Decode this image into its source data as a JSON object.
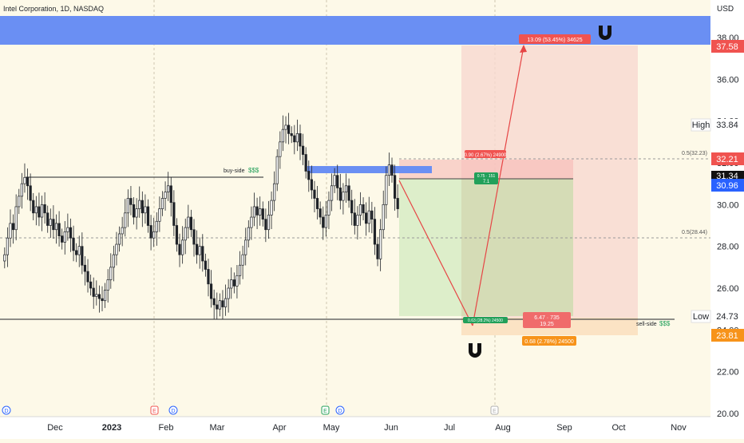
{
  "header": {
    "symbol_label": "Intel Corporation, 1D, NASDAQ",
    "currency": "USD"
  },
  "chart_data": {
    "type": "candlestick",
    "x_ticks": [
      "Dec",
      "2023",
      "Feb",
      "Mar",
      "Apr",
      "May",
      "Jun",
      "Jul",
      "Aug",
      "Sep",
      "Oct",
      "Nov"
    ],
    "y_ticks": [
      "38.00",
      "36.00",
      "34.00",
      "32.00",
      "30.00",
      "28.00",
      "26.00",
      "24.00",
      "22.00",
      "20.00"
    ],
    "y_range": [
      20,
      39.5
    ],
    "candle_closes": [
      27.6,
      28.4,
      29.1,
      28.8,
      29.9,
      30.4,
      31.0,
      31.3,
      30.9,
      30.2,
      29.6,
      29.9,
      29.4,
      30.0,
      29.6,
      29.0,
      29.3,
      28.8,
      29.1,
      28.5,
      28.2,
      28.7,
      28.9,
      28.4,
      27.8,
      27.6,
      28.0,
      27.1,
      26.8,
      26.3,
      26.0,
      25.6,
      25.7,
      25.5,
      25.4,
      25.9,
      26.4,
      27.0,
      27.6,
      28.1,
      28.6,
      28.9,
      29.6,
      30.3,
      30.0,
      29.4,
      29.8,
      30.2,
      29.6,
      29.9,
      29.0,
      28.4,
      28.7,
      29.2,
      29.8,
      30.3,
      30.6,
      30.9,
      30.1,
      29.0,
      28.1,
      27.6,
      28.3,
      28.9,
      29.4,
      28.8,
      28.1,
      27.6,
      28.0,
      27.3,
      26.9,
      26.2,
      25.5,
      25.2,
      25.0,
      25.4,
      25.1,
      25.5,
      26.0,
      26.4,
      26.1,
      26.6,
      27.1,
      27.6,
      28.3,
      28.9,
      29.4,
      29.9,
      29.5,
      29.8,
      29.3,
      28.8,
      29.5,
      30.2,
      31.0,
      32.3,
      33.0,
      33.6,
      33.8,
      33.4,
      33.3,
      33.0,
      33.4,
      32.8,
      32.4,
      31.6,
      31.2,
      30.7,
      30.3,
      29.8,
      29.4,
      28.9,
      29.5,
      30.2,
      30.9,
      31.4,
      30.8,
      30.2,
      30.6,
      30.9,
      30.2,
      29.6,
      29.0,
      29.5,
      30.0,
      29.6,
      29.1,
      29.7,
      29.3,
      28.1,
      27.4,
      28.8,
      30.0,
      31.4,
      31.9,
      31.4,
      30.3,
      29.8
    ]
  },
  "annotations": {
    "buy_side_label": "buy-side",
    "sell_side_label": "sell-side",
    "fib_high_label": "0.5(32.23)",
    "fib_low_label": "0.5(28.44)",
    "long_target_label": "13.09 (53.45%) 34625",
    "long_top_label": "0.90 (2.67%) 24900",
    "long_entry_label_1": "0.75 · 151",
    "long_entry_label_2": "7.1",
    "short_bottom_label": "0.63 (28.2%) 24500",
    "stats_label_1": "6.47 · 735",
    "stats_label_2": "19.25",
    "orange_label": "0.68 (2.78%) 24500",
    "magnet_top": "magnet",
    "magnet_bottom": "magnet"
  },
  "price_badges": {
    "high_label": "High",
    "high_value": "33.84",
    "low_label": "Low",
    "low_value": "24.73",
    "b1": "37.58",
    "b2": "32.21",
    "b3": "31.34",
    "b4": "30.96",
    "b5": "23.81"
  },
  "events": {
    "d1": "D",
    "e1": "E",
    "d2": "D",
    "e2": "E",
    "d3": "D",
    "e3": "E"
  },
  "colors": {
    "background": "#fdf9e8",
    "blue_zone": "#6a8ff3",
    "candle": "#1e2228",
    "red_badge": "#f05350",
    "blue_badge": "#2962ff",
    "orange_badge": "#f7931a",
    "green_label": "#22a05a",
    "profit_zone": "#d7ecc4",
    "loss_zone": "#f8d8cf"
  }
}
